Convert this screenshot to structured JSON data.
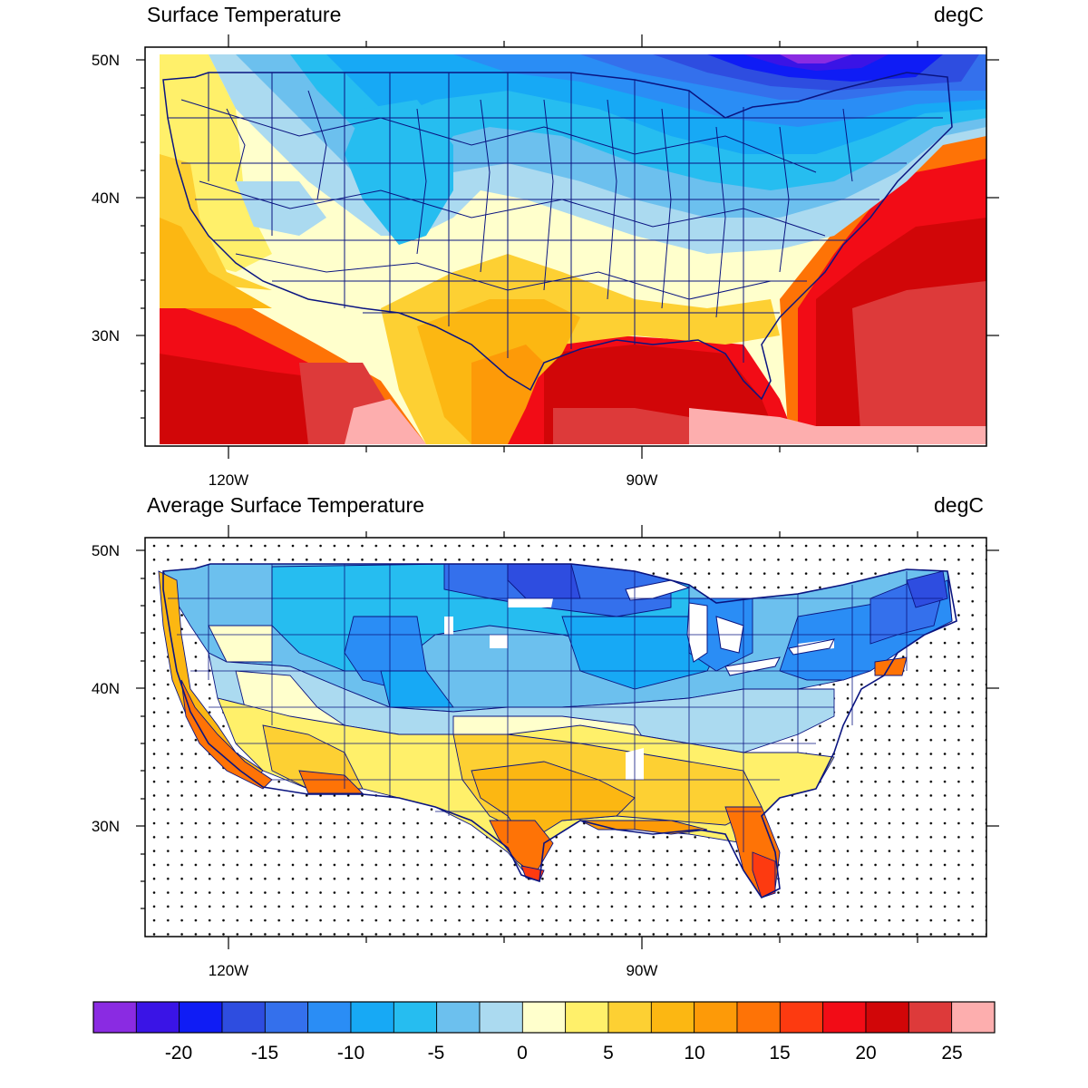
{
  "panels": [
    {
      "title": "Surface Temperature",
      "unit": "degC",
      "lat_labels": [
        "50N",
        "40N",
        "30N"
      ],
      "lon_labels": [
        "120W",
        "90W"
      ]
    },
    {
      "title": "Average Surface Temperature",
      "unit": "degC",
      "lat_labels": [
        "50N",
        "40N",
        "30N"
      ],
      "lon_labels": [
        "120W",
        "90W"
      ]
    }
  ],
  "colorbar": {
    "labels": [
      "-20",
      "-15",
      "-10",
      "-5",
      "0",
      "5",
      "10",
      "15",
      "20",
      "25"
    ],
    "colors": [
      "#8a2be2",
      "#3a14e6",
      "#0f1cf5",
      "#2e4de0",
      "#3470ec",
      "#2a8df5",
      "#17a9f5",
      "#26bdf0",
      "#6cc0ee",
      "#abdaf0",
      "#ffffcc",
      "#fff06a",
      "#fdd033",
      "#fcb712",
      "#fd9a08",
      "#fe7306",
      "#fd3a10",
      "#f20c16",
      "#d10608",
      "#dd3a3a",
      "#fdaeae"
    ]
  },
  "colors": {
    "boundary": "#0a1480",
    "dot": "#000000"
  }
}
